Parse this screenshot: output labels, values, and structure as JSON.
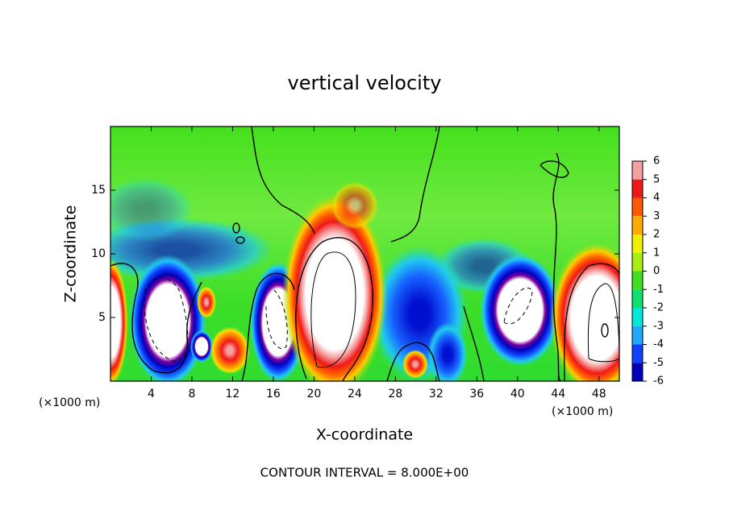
{
  "chart_data": {
    "type": "contour",
    "title": "vertical velocity",
    "xlabel": "X-coordinate",
    "ylabel": "Z-coordinate",
    "x_unit_label": "(×1000 m)",
    "annotation": "CONTOUR INTERVAL = 8.000E+00",
    "xlim": [
      0,
      50
    ],
    "ylim": [
      0,
      20
    ],
    "xticks": [
      4,
      8,
      12,
      16,
      20,
      24,
      28,
      32,
      36,
      40,
      44,
      48
    ],
    "yticks": [
      5,
      10,
      15
    ],
    "colorbar": {
      "levels": [
        6,
        5,
        4,
        3,
        2,
        1,
        0,
        -1,
        -2,
        -3,
        -4,
        -5,
        -6
      ],
      "colors": [
        "#f6a0a0",
        "#f01818",
        "#ff5a00",
        "#ffaa00",
        "#f0f000",
        "#a8ee10",
        "#40e020",
        "#10e070",
        "#00e8d8",
        "#20a8ff",
        "#1040ff",
        "#0000b8"
      ]
    }
  }
}
